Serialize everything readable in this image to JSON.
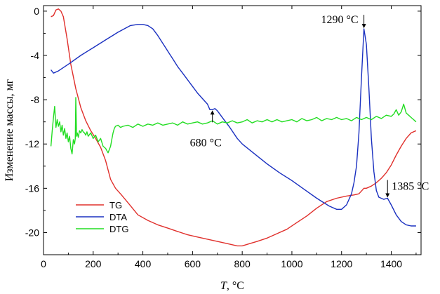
{
  "chart_data": {
    "type": "line",
    "title": "",
    "xlabel": {
      "symbol": "T",
      "unit": ", °C"
    },
    "ylabel": "Изменение массы, мг",
    "xlim": [
      0,
      1520
    ],
    "ylim": [
      -22,
      0.5
    ],
    "xticks": [
      0,
      200,
      400,
      600,
      800,
      1000,
      1200,
      1400
    ],
    "xtick_labels": [
      "0",
      "200",
      "400",
      "600",
      "800",
      "1000",
      "1200",
      "1400"
    ],
    "yticks": [
      0,
      -4,
      -8,
      -12,
      -16,
      -20
    ],
    "ytick_labels": [
      "0",
      "-4",
      "-8",
      "-12",
      "-16",
      "-20"
    ],
    "grid": false,
    "legend_position": "bottom-left",
    "series": [
      {
        "name": "TG",
        "color": "#e0302c",
        "x": [
          30,
          40,
          50,
          60,
          70,
          80,
          95,
          110,
          130,
          150,
          170,
          190,
          210,
          230,
          250,
          270,
          290,
          310,
          340,
          380,
          420,
          460,
          500,
          540,
          580,
          620,
          660,
          700,
          740,
          780,
          800,
          830,
          860,
          900,
          940,
          980,
          1020,
          1060,
          1100,
          1140,
          1180,
          1220,
          1250,
          1270,
          1290,
          1300,
          1320,
          1340,
          1360,
          1380,
          1400,
          1420,
          1440,
          1460,
          1480,
          1500
        ],
        "y": [
          -0.5,
          -0.4,
          0.1,
          0.2,
          0.0,
          -0.5,
          -2.5,
          -4.8,
          -7.0,
          -8.7,
          -9.9,
          -10.8,
          -11.5,
          -12.3,
          -13.5,
          -15.2,
          -16.0,
          -16.5,
          -17.3,
          -18.4,
          -18.9,
          -19.3,
          -19.6,
          -19.9,
          -20.2,
          -20.4,
          -20.6,
          -20.8,
          -21.0,
          -21.2,
          -21.2,
          -21.0,
          -20.8,
          -20.5,
          -20.1,
          -19.7,
          -19.1,
          -18.5,
          -17.8,
          -17.2,
          -16.9,
          -16.7,
          -16.6,
          -16.5,
          -16.0,
          -16.0,
          -15.8,
          -15.5,
          -15.1,
          -14.6,
          -13.9,
          -13.0,
          -12.2,
          -11.5,
          -11.0,
          -10.8
        ]
      },
      {
        "name": "DTA",
        "color": "#1a30c0",
        "x": [
          30,
          40,
          60,
          100,
          150,
          200,
          250,
          300,
          350,
          380,
          400,
          420,
          440,
          460,
          480,
          500,
          520,
          540,
          560,
          580,
          600,
          620,
          640,
          660,
          670,
          680,
          690,
          700,
          720,
          750,
          780,
          800,
          850,
          900,
          950,
          1000,
          1050,
          1100,
          1150,
          1180,
          1200,
          1220,
          1240,
          1250,
          1260,
          1270,
          1280,
          1290,
          1300,
          1310,
          1320,
          1330,
          1340,
          1350,
          1370,
          1385,
          1400,
          1420,
          1440,
          1460,
          1480,
          1500
        ],
        "y": [
          -5.3,
          -5.6,
          -5.4,
          -4.8,
          -4.0,
          -3.3,
          -2.6,
          -1.9,
          -1.3,
          -1.2,
          -1.2,
          -1.3,
          -1.6,
          -2.2,
          -2.9,
          -3.6,
          -4.3,
          -5.0,
          -5.6,
          -6.2,
          -6.8,
          -7.4,
          -7.9,
          -8.4,
          -8.9,
          -8.9,
          -8.8,
          -9.0,
          -9.6,
          -10.5,
          -11.5,
          -12.0,
          -12.9,
          -13.8,
          -14.6,
          -15.3,
          -16.1,
          -16.9,
          -17.6,
          -17.9,
          -17.9,
          -17.5,
          -16.5,
          -15.5,
          -14.0,
          -11.0,
          -6.0,
          -1.6,
          -3.0,
          -7.0,
          -11.5,
          -14.5,
          -16.2,
          -16.8,
          -17.0,
          -16.9,
          -17.5,
          -18.4,
          -19.0,
          -19.3,
          -19.4,
          -19.4
        ]
      },
      {
        "name": "DTG",
        "color": "#22dd22",
        "x": [
          30,
          35,
          40,
          45,
          50,
          55,
          60,
          65,
          70,
          75,
          80,
          85,
          90,
          95,
          100,
          105,
          110,
          115,
          120,
          125,
          128,
          130,
          133,
          136,
          140,
          145,
          150,
          155,
          160,
          165,
          170,
          175,
          180,
          190,
          200,
          210,
          220,
          230,
          240,
          250,
          260,
          265,
          270,
          275,
          280,
          285,
          290,
          300,
          310,
          320,
          340,
          360,
          380,
          400,
          420,
          440,
          460,
          480,
          500,
          520,
          540,
          560,
          580,
          600,
          620,
          640,
          660,
          680,
          700,
          720,
          740,
          760,
          780,
          800,
          820,
          840,
          860,
          880,
          900,
          920,
          940,
          960,
          980,
          1000,
          1020,
          1040,
          1060,
          1080,
          1100,
          1120,
          1140,
          1160,
          1180,
          1200,
          1220,
          1240,
          1260,
          1280,
          1300,
          1320,
          1340,
          1360,
          1380,
          1400,
          1410,
          1420,
          1430,
          1440,
          1450,
          1460,
          1470,
          1480,
          1490,
          1500
        ],
        "y": [
          -12.2,
          -10.8,
          -9.6,
          -8.6,
          -10.5,
          -9.8,
          -10.4,
          -10.0,
          -10.9,
          -10.3,
          -11.2,
          -10.6,
          -11.5,
          -11.0,
          -11.8,
          -11.3,
          -12.4,
          -12.9,
          -11.6,
          -12.0,
          -11.5,
          -7.8,
          -11.3,
          -11.0,
          -11.4,
          -10.8,
          -11.0,
          -10.7,
          -10.9,
          -11.0,
          -11.2,
          -10.9,
          -11.3,
          -11.0,
          -11.5,
          -11.2,
          -11.8,
          -11.5,
          -12.2,
          -12.4,
          -12.8,
          -12.5,
          -12.2,
          -11.6,
          -11.0,
          -10.6,
          -10.4,
          -10.3,
          -10.5,
          -10.4,
          -10.3,
          -10.5,
          -10.2,
          -10.4,
          -10.2,
          -10.3,
          -10.1,
          -10.3,
          -10.2,
          -10.1,
          -10.3,
          -10.0,
          -10.2,
          -10.1,
          -10.0,
          -10.2,
          -10.1,
          -9.9,
          -10.2,
          -10.0,
          -10.1,
          -9.9,
          -10.1,
          -10.0,
          -9.8,
          -10.1,
          -9.9,
          -10.0,
          -9.8,
          -10.0,
          -9.8,
          -10.0,
          -9.9,
          -9.8,
          -10.0,
          -9.7,
          -9.9,
          -9.8,
          -9.6,
          -9.9,
          -9.7,
          -9.8,
          -9.6,
          -9.8,
          -9.7,
          -9.9,
          -9.6,
          -9.8,
          -9.6,
          -9.8,
          -9.5,
          -9.7,
          -9.4,
          -9.5,
          -9.3,
          -8.9,
          -9.4,
          -9.1,
          -8.4,
          -9.2,
          -9.4,
          -9.6,
          -9.8,
          -10.0
        ]
      }
    ],
    "annotations": [
      {
        "id": "a680",
        "text": "680 °C",
        "x": 680,
        "y": -8.9,
        "arrow": "up"
      },
      {
        "id": "a1290",
        "text": "1290 °C",
        "x": 1290,
        "y": -1.6,
        "arrow": "down"
      },
      {
        "id": "a1385",
        "text": "1385 °C",
        "x": 1385,
        "y": -16.9,
        "arrow": "down"
      }
    ]
  }
}
